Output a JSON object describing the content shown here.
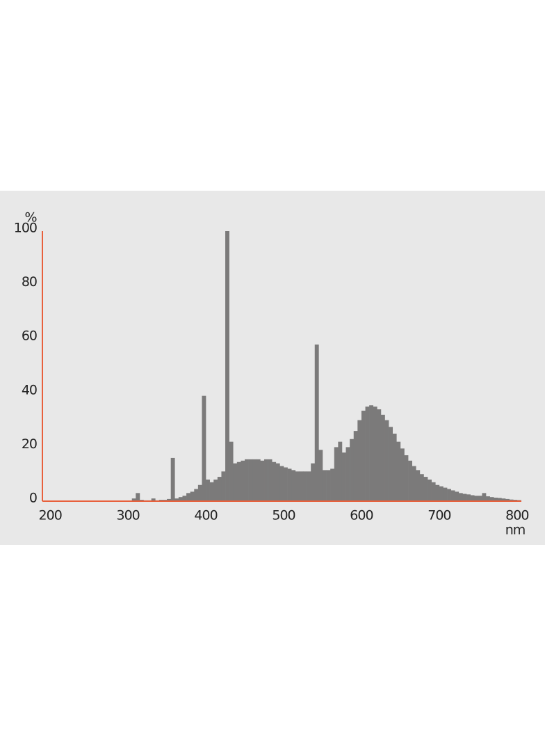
{
  "chart_data": {
    "type": "histogram",
    "y_label": "%",
    "x_label": "nm",
    "xlim": [
      190,
      810
    ],
    "ylim": [
      0,
      100
    ],
    "xticks": [
      200,
      300,
      400,
      500,
      600,
      700,
      800
    ],
    "yticks": [
      0,
      20,
      40,
      60,
      80,
      100
    ],
    "grid": false,
    "color": "#7b7a7a",
    "axis_color": "#e8603c",
    "bins": [
      300,
      305,
      310,
      315,
      320,
      325,
      330,
      335,
      340,
      345,
      350,
      355,
      360,
      365,
      370,
      375,
      380,
      385,
      390,
      395,
      400,
      405,
      410,
      415,
      420,
      425,
      430,
      435,
      440,
      445,
      450,
      455,
      460,
      465,
      470,
      475,
      480,
      485,
      490,
      495,
      500,
      505,
      510,
      515,
      520,
      525,
      530,
      535,
      540,
      545,
      550,
      555,
      560,
      565,
      570,
      575,
      580,
      585,
      590,
      595,
      600,
      605,
      610,
      615,
      620,
      625,
      630,
      635,
      640,
      645,
      650,
      655,
      660,
      665,
      670,
      675,
      680,
      685,
      690,
      695,
      700,
      705,
      710,
      715,
      720,
      725,
      730,
      735,
      740,
      745,
      750,
      755,
      760,
      765,
      770,
      775,
      780,
      785,
      790,
      795,
      800,
      805
    ],
    "counts": [
      0,
      1,
      3,
      0.5,
      0.3,
      0.3,
      1,
      0.3,
      0.5,
      0.5,
      0.8,
      16,
      1,
      1.5,
      2,
      3,
      3.5,
      4.5,
      6,
      39,
      8,
      7,
      8,
      9,
      11,
      100,
      22,
      14,
      14.5,
      15,
      15.5,
      15.5,
      15.5,
      15.5,
      15,
      15.5,
      15.5,
      14.5,
      14,
      13,
      12.5,
      12,
      11.5,
      11,
      11,
      11,
      11,
      14,
      58,
      19,
      11.5,
      11.5,
      12,
      20,
      22,
      18,
      20,
      23,
      26,
      30,
      33.5,
      35,
      35.5,
      35,
      34,
      32,
      30,
      27.5,
      25,
      22,
      19.5,
      17,
      15,
      13,
      11.5,
      10,
      9,
      8,
      7,
      6,
      5.5,
      5,
      4.5,
      4,
      3.5,
      3,
      2.7,
      2.5,
      2.2,
      2,
      2,
      3,
      1.8,
      1.5,
      1.3,
      1.2,
      1,
      0.8,
      0.6,
      0.5,
      0.4
    ]
  }
}
